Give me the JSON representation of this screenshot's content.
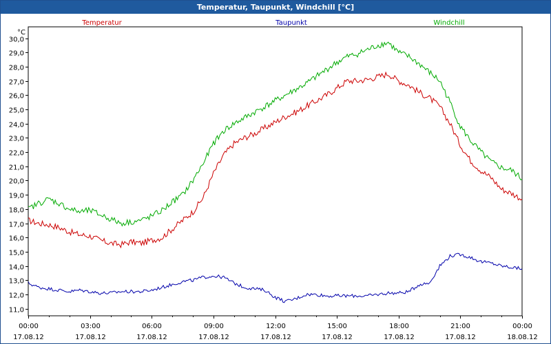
{
  "window": {
    "title": "Temperatur, Taupunkt, Windchill [°C]"
  },
  "chart_data": {
    "type": "line",
    "title": "Temperatur, Taupunkt, Windchill [°C]",
    "ylabel": "°C",
    "xlabel": "",
    "ylim": [
      10.5,
      30.8
    ],
    "xlim_hours": [
      0,
      24
    ],
    "grid": true,
    "yticks": [
      "30,0",
      "29,0",
      "28,0",
      "27,0",
      "26,0",
      "25,0",
      "24,0",
      "23,0",
      "22,0",
      "21,0",
      "20,0",
      "19,0",
      "18,0",
      "17,0",
      "16,0",
      "15,0",
      "14,0",
      "13,0",
      "12,0",
      "11,0"
    ],
    "ytick_values": [
      30,
      29,
      28,
      27,
      26,
      25,
      24,
      23,
      22,
      21,
      20,
      19,
      18,
      17,
      16,
      15,
      14,
      13,
      12,
      11
    ],
    "xticks": [
      {
        "time": "00:00",
        "date": "17.08.12",
        "hour": 0
      },
      {
        "time": "03:00",
        "date": "17.08.12",
        "hour": 3
      },
      {
        "time": "06:00",
        "date": "17.08.12",
        "hour": 6
      },
      {
        "time": "09:00",
        "date": "17.08.12",
        "hour": 9
      },
      {
        "time": "12:00",
        "date": "17.08.12",
        "hour": 12
      },
      {
        "time": "15:00",
        "date": "17.08.12",
        "hour": 15
      },
      {
        "time": "18:00",
        "date": "17.08.12",
        "hour": 18
      },
      {
        "time": "21:00",
        "date": "17.08.12",
        "hour": 21
      },
      {
        "time": "00:00",
        "date": "18.08.12",
        "hour": 24
      }
    ],
    "series": [
      {
        "name": "Temperatur",
        "color": "#cc0000",
        "x": [
          0,
          0.5,
          1,
          1.5,
          2,
          2.5,
          3,
          3.5,
          4,
          4.5,
          5,
          5.5,
          6,
          6.5,
          7,
          7.5,
          8,
          8.5,
          9,
          9.5,
          10,
          10.5,
          11,
          11.5,
          12,
          12.5,
          13,
          13.5,
          14,
          14.5,
          15,
          15.5,
          16,
          16.5,
          17,
          17.5,
          18,
          18.5,
          19,
          19.5,
          20,
          20.5,
          21,
          21.5,
          22,
          22.5,
          23,
          23.5,
          24
        ],
        "values": [
          17.2,
          17.0,
          16.9,
          16.7,
          16.4,
          16.2,
          16.1,
          15.8,
          15.6,
          15.5,
          15.7,
          15.6,
          15.8,
          16.0,
          16.6,
          17.2,
          17.8,
          18.8,
          20.5,
          21.8,
          22.6,
          23.0,
          23.3,
          23.7,
          24.1,
          24.5,
          24.8,
          25.2,
          25.6,
          26.0,
          26.5,
          27.0,
          27.0,
          27.1,
          27.3,
          27.5,
          27.0,
          26.7,
          26.2,
          25.8,
          25.2,
          24.0,
          22.5,
          21.4,
          20.7,
          20.2,
          19.4,
          19.1,
          18.7
        ]
      },
      {
        "name": "Taupunkt",
        "color": "#0000aa",
        "x": [
          0,
          0.5,
          1,
          1.5,
          2,
          2.5,
          3,
          3.5,
          4,
          4.5,
          5,
          5.5,
          6,
          6.5,
          7,
          7.5,
          8,
          8.5,
          9,
          9.5,
          10,
          10.5,
          11,
          11.5,
          12,
          12.5,
          13,
          13.5,
          14,
          14.5,
          15,
          15.5,
          16,
          16.5,
          17,
          17.5,
          18,
          18.5,
          19,
          19.5,
          20,
          20.5,
          21,
          21.5,
          22,
          22.5,
          23,
          23.5,
          24
        ],
        "values": [
          12.8,
          12.5,
          12.4,
          12.3,
          12.2,
          12.3,
          12.2,
          12.1,
          12.1,
          12.2,
          12.2,
          12.2,
          12.3,
          12.5,
          12.7,
          12.9,
          13.0,
          13.2,
          13.3,
          13.2,
          12.8,
          12.5,
          12.4,
          12.3,
          11.8,
          11.5,
          11.7,
          12.0,
          12.0,
          11.9,
          11.9,
          11.9,
          11.9,
          11.9,
          12.0,
          12.1,
          12.1,
          12.2,
          12.7,
          12.8,
          14.0,
          14.7,
          14.8,
          14.6,
          14.3,
          14.2,
          14.0,
          13.9,
          13.8
        ]
      },
      {
        "name": "Windchill",
        "color": "#00aa00",
        "x": [
          0,
          0.5,
          1,
          1.5,
          2,
          2.5,
          3,
          3.5,
          4,
          4.5,
          5,
          5.5,
          6,
          6.5,
          7,
          7.5,
          8,
          8.5,
          9,
          9.5,
          10,
          10.5,
          11,
          11.5,
          12,
          12.5,
          13,
          13.5,
          14,
          14.5,
          15,
          15.5,
          16,
          16.5,
          17,
          17.5,
          18,
          18.5,
          19,
          19.5,
          20,
          20.5,
          21,
          21.5,
          22,
          22.5,
          23,
          23.5,
          24
        ],
        "values": [
          18.0,
          18.4,
          18.7,
          18.4,
          18.0,
          17.8,
          17.9,
          17.6,
          17.3,
          17.0,
          17.1,
          17.2,
          17.5,
          17.9,
          18.5,
          19.0,
          20.0,
          21.2,
          22.6,
          23.5,
          24.0,
          24.4,
          24.8,
          25.2,
          25.6,
          26.0,
          26.4,
          26.8,
          27.3,
          27.8,
          28.3,
          28.7,
          28.9,
          29.2,
          29.5,
          29.7,
          29.0,
          28.7,
          28.2,
          27.6,
          27.0,
          25.5,
          23.8,
          22.8,
          22.0,
          21.3,
          20.9,
          20.7,
          20.1
        ]
      }
    ]
  }
}
